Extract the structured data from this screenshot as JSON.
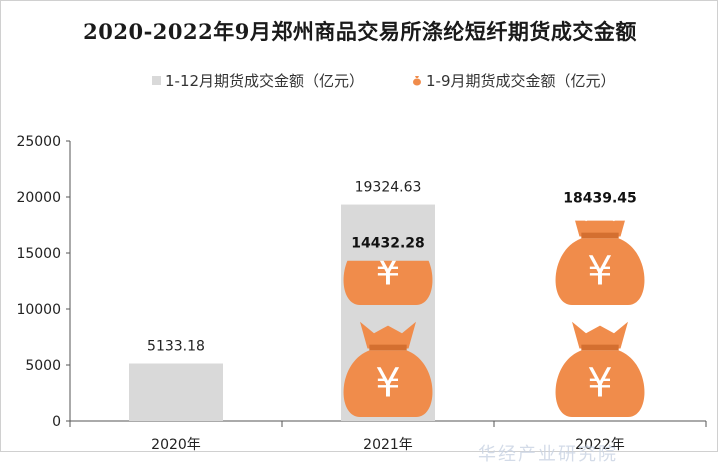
{
  "chart_data": {
    "type": "bar",
    "title": "2020-2022年9月郑州商品交易所涤纶短纤期货成交金额",
    "categories": [
      "2020年",
      "2021年",
      "2022年"
    ],
    "series": [
      {
        "name": "1-12月期货成交金额（亿元）",
        "values": [
          5133.18,
          19324.63,
          null
        ],
        "color": "#d9d9d9"
      },
      {
        "name": "1-9月期货成交金额（亿元）",
        "values": [
          null,
          14432.28,
          18439.45
        ],
        "color": "#f08c4b",
        "icon": "money-bag-icon"
      }
    ],
    "data_labels": [
      "5133.18",
      "19324.63",
      "14432.28",
      "18439.45"
    ],
    "y_ticks": [
      "0",
      "5000",
      "10000",
      "15000",
      "20000",
      "25000"
    ],
    "ylim": [
      0,
      25000
    ],
    "grid": false,
    "legend_position": "top"
  },
  "watermark": "华经产业研究院"
}
